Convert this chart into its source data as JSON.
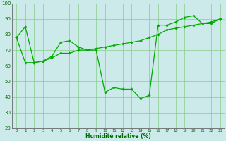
{
  "xlabel": "Humidité relative (%)",
  "background_color": "#cceaea",
  "grid_color": "#88cc88",
  "line_color": "#00aa00",
  "x": [
    0,
    1,
    2,
    3,
    4,
    5,
    6,
    7,
    8,
    9,
    10,
    11,
    12,
    13,
    14,
    15,
    16,
    17,
    18,
    19,
    20,
    21,
    22,
    23
  ],
  "line1": [
    78,
    85,
    62,
    63,
    66,
    75,
    76,
    72,
    70,
    70,
    43,
    46,
    45,
    45,
    39,
    41,
    86,
    86,
    88,
    91,
    92,
    87,
    87,
    90
  ],
  "line2": [
    78,
    62,
    62,
    63,
    65,
    68,
    68,
    70,
    70,
    71,
    72,
    73,
    74,
    75,
    76,
    78,
    80,
    83,
    84,
    85,
    86,
    87,
    88,
    90
  ],
  "ylim": [
    20,
    100
  ],
  "yticks": [
    20,
    30,
    40,
    50,
    60,
    70,
    80,
    90,
    100
  ],
  "xlim": [
    -0.5,
    23.5
  ],
  "xticks": [
    0,
    1,
    2,
    3,
    4,
    5,
    6,
    7,
    8,
    9,
    10,
    11,
    12,
    13,
    14,
    15,
    16,
    17,
    18,
    19,
    20,
    21,
    22,
    23
  ],
  "marker": "D",
  "markersize": 1.8,
  "linewidth": 0.9,
  "tick_fontsize": 4.0,
  "ytick_fontsize": 5.0,
  "xlabel_fontsize": 5.5
}
